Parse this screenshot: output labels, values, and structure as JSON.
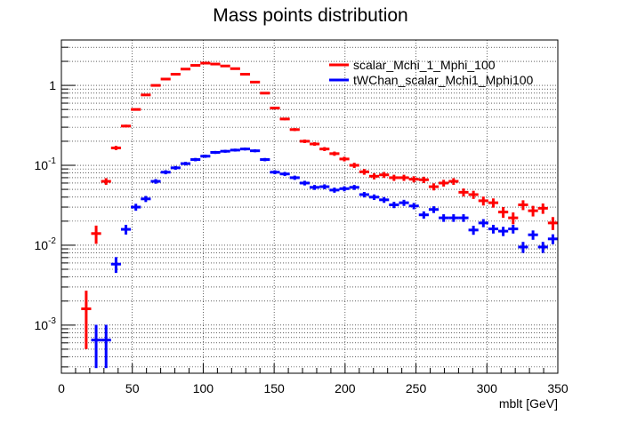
{
  "chart_data": {
    "type": "scatter",
    "title": "Mass points distribution",
    "xlabel": "mblt [GeV]",
    "ylabel": "",
    "xlim": [
      0,
      350
    ],
    "ylim": [
      0.00025,
      3.7
    ],
    "yscale": "log",
    "grid": true,
    "legend_position": "top-right",
    "x_ticks": [
      0,
      50,
      100,
      150,
      200,
      250,
      300,
      350
    ],
    "y_ticks": [
      {
        "value": 0.001,
        "base": "10",
        "exp": "-3"
      },
      {
        "value": 0.01,
        "base": "10",
        "exp": "-2"
      },
      {
        "value": 0.1,
        "base": "10",
        "exp": "-1"
      },
      {
        "value": 1,
        "base": "1",
        "exp": ""
      }
    ],
    "bin_width": 7,
    "series": [
      {
        "name": "scalar_Mchi_1_Mphi_100",
        "color": "#ff0000",
        "x": [
          17.5,
          24.5,
          31.5,
          38.5,
          45.5,
          52.5,
          59.5,
          66.5,
          73.5,
          80.5,
          87.5,
          94.5,
          101.5,
          108.5,
          115.5,
          122.5,
          129.5,
          136.5,
          143.5,
          150.5,
          157.5,
          164.5,
          171.5,
          178.5,
          185.5,
          192.5,
          199.5,
          206.5,
          213.5,
          220.5,
          227.5,
          234.5,
          241.5,
          248.5,
          255.5,
          262.5,
          269.5,
          276.5,
          283.5,
          290.5,
          297.5,
          304.5,
          311.5,
          318.5,
          325.5,
          332.5,
          339.5,
          346.5
        ],
        "y": [
          0.0016,
          0.014,
          0.063,
          0.165,
          0.31,
          0.5,
          0.76,
          1.0,
          1.2,
          1.38,
          1.6,
          1.78,
          1.9,
          1.85,
          1.75,
          1.62,
          1.38,
          1.1,
          0.8,
          0.52,
          0.38,
          0.28,
          0.2,
          0.185,
          0.16,
          0.14,
          0.12,
          0.1,
          0.083,
          0.073,
          0.076,
          0.07,
          0.07,
          0.067,
          0.066,
          0.054,
          0.06,
          0.063,
          0.046,
          0.043,
          0.036,
          0.034,
          0.026,
          0.022,
          0.032,
          0.027,
          0.029,
          0.019
        ],
        "yerr_low": [
          0.0011,
          0.0036,
          0.006,
          0.01,
          0.012,
          0.015,
          0.018,
          0.02,
          0.022,
          0.024,
          0.026,
          0.028,
          0.03,
          0.03,
          0.029,
          0.028,
          0.026,
          0.023,
          0.02,
          0.016,
          0.014,
          0.012,
          0.01,
          0.0095,
          0.009,
          0.0085,
          0.008,
          0.0075,
          0.0068,
          0.0064,
          0.0065,
          0.0062,
          0.0062,
          0.006,
          0.006,
          0.0055,
          0.0058,
          0.006,
          0.0052,
          0.005,
          0.0046,
          0.0045,
          0.004,
          0.0037,
          0.0045,
          0.0041,
          0.0043,
          0.0035
        ],
        "yerr_high": [
          0.0011,
          0.0036,
          0.006,
          0.01,
          0.012,
          0.015,
          0.018,
          0.02,
          0.022,
          0.024,
          0.026,
          0.028,
          0.03,
          0.03,
          0.029,
          0.028,
          0.026,
          0.023,
          0.02,
          0.016,
          0.014,
          0.012,
          0.01,
          0.0095,
          0.009,
          0.0085,
          0.008,
          0.0075,
          0.0068,
          0.0064,
          0.0065,
          0.0062,
          0.0062,
          0.006,
          0.006,
          0.0055,
          0.0058,
          0.006,
          0.0052,
          0.005,
          0.0046,
          0.0045,
          0.004,
          0.0037,
          0.0045,
          0.0041,
          0.0043,
          0.0035
        ]
      },
      {
        "name": "tWChan_scalar_Mchi1_Mphi100",
        "color": "#0000ff",
        "x": [
          24.5,
          31.5,
          38.5,
          45.5,
          52.5,
          59.5,
          66.5,
          73.5,
          80.5,
          87.5,
          94.5,
          101.5,
          108.5,
          115.5,
          122.5,
          129.5,
          136.5,
          143.5,
          150.5,
          157.5,
          164.5,
          171.5,
          178.5,
          185.5,
          192.5,
          199.5,
          206.5,
          213.5,
          220.5,
          227.5,
          234.5,
          241.5,
          248.5,
          255.5,
          262.5,
          269.5,
          276.5,
          283.5,
          290.5,
          297.5,
          304.5,
          311.5,
          318.5,
          325.5,
          332.5,
          339.5,
          346.5
        ],
        "y": [
          0.00065,
          0.00065,
          0.0058,
          0.0158,
          0.03,
          0.038,
          0.063,
          0.082,
          0.093,
          0.105,
          0.118,
          0.13,
          0.145,
          0.15,
          0.155,
          0.16,
          0.152,
          0.118,
          0.082,
          0.078,
          0.07,
          0.06,
          0.053,
          0.054,
          0.049,
          0.051,
          0.053,
          0.043,
          0.04,
          0.037,
          0.032,
          0.034,
          0.031,
          0.024,
          0.028,
          0.022,
          0.022,
          0.022,
          0.0155,
          0.019,
          0.016,
          0.015,
          0.016,
          0.0095,
          0.0135,
          0.0095,
          0.012
        ],
        "yerr_low": [
          0.00036,
          0.00036,
          0.0013,
          0.0022,
          0.003,
          0.0033,
          0.0042,
          0.0048,
          0.005,
          0.0054,
          0.0057,
          0.006,
          0.0063,
          0.0064,
          0.0065,
          0.0066,
          0.0064,
          0.0056,
          0.0047,
          0.0046,
          0.0043,
          0.004,
          0.0038,
          0.0038,
          0.0036,
          0.0037,
          0.0038,
          0.0034,
          0.0032,
          0.0031,
          0.0029,
          0.003,
          0.0028,
          0.0025,
          0.0027,
          0.0024,
          0.0024,
          0.0024,
          0.002,
          0.0022,
          0.002,
          0.002,
          0.002,
          0.0015,
          0.0018,
          0.0015,
          0.0017
        ],
        "yerr_high": [
          0.00036,
          0.00036,
          0.0013,
          0.0022,
          0.003,
          0.0033,
          0.0042,
          0.0048,
          0.005,
          0.0054,
          0.0057,
          0.006,
          0.0063,
          0.0064,
          0.0065,
          0.0066,
          0.0064,
          0.0056,
          0.0047,
          0.0046,
          0.0043,
          0.004,
          0.0038,
          0.0038,
          0.0036,
          0.0037,
          0.0038,
          0.0034,
          0.0032,
          0.0031,
          0.0029,
          0.003,
          0.0028,
          0.0025,
          0.0027,
          0.0024,
          0.0024,
          0.0024,
          0.002,
          0.0022,
          0.002,
          0.002,
          0.002,
          0.0015,
          0.0018,
          0.0015,
          0.0017
        ]
      }
    ]
  }
}
